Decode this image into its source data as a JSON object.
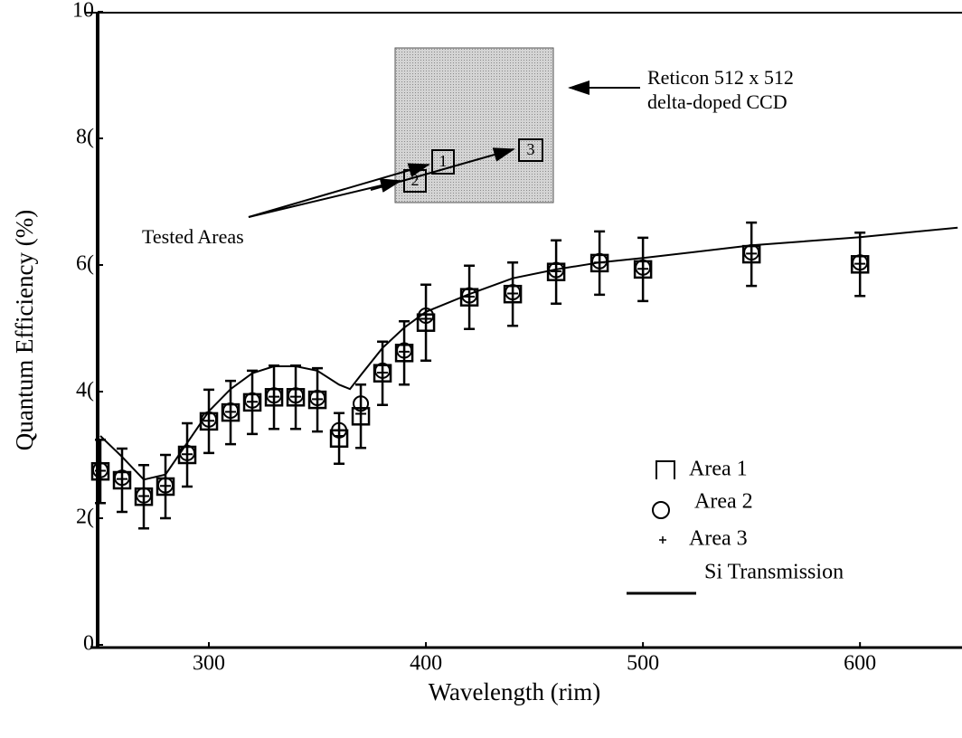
{
  "chart_data": {
    "type": "scatter",
    "xlabel": "Wavelength (rim)",
    "ylabel": "Quantum Efficiency (%)",
    "xlim": [
      249,
      647
    ],
    "ylim": [
      0,
      100
    ],
    "xticks": [
      300,
      400,
      500,
      600
    ],
    "yticks": [
      {
        "value": 100,
        "label": "10"
      },
      {
        "value": 80,
        "label": "8("
      },
      {
        "value": 60,
        "label": "6("
      },
      {
        "value": 40,
        "label": "4("
      },
      {
        "value": 20,
        "label": "2("
      },
      {
        "value": 0,
        "label": "0"
      }
    ],
    "annotations": [
      "Reticon 512 x 512",
      "delta-doped CCD",
      "Tested Areas"
    ],
    "inset_labels": [
      "1",
      "2",
      "3"
    ],
    "series": [
      {
        "name": "Area 1",
        "marker": "square",
        "color": "#000",
        "x": [
          250,
          260,
          270,
          280,
          290,
          300,
          310,
          320,
          330,
          340,
          350,
          360,
          370,
          380,
          390,
          400,
          420,
          440,
          460,
          480,
          500,
          550,
          600
        ],
        "values": [
          27.4,
          26,
          23.4,
          25,
          30,
          35.3,
          36.7,
          38.3,
          39.1,
          39.1,
          38.7,
          32.6,
          36.1,
          42.9,
          46.1,
          50.9,
          54.9,
          55.4,
          58.9,
          60.3,
          59.3,
          61.7,
          60.1
        ],
        "errors": [
          5,
          5,
          5,
          5,
          5,
          5,
          5,
          5,
          5,
          5,
          5,
          4,
          5,
          5,
          5,
          6,
          5,
          5,
          5,
          5,
          5,
          5,
          5
        ]
      },
      {
        "name": "Area 2",
        "marker": "circle",
        "color": "#000",
        "x": [
          250,
          260,
          270,
          280,
          290,
          300,
          310,
          320,
          330,
          340,
          350,
          360,
          370,
          380,
          390,
          400,
          420,
          440,
          460,
          480,
          500,
          550,
          600
        ],
        "values": [
          27.6,
          26.4,
          23.6,
          25.2,
          30.3,
          35.6,
          37,
          38.6,
          39.4,
          39.4,
          39,
          33.9,
          38.1,
          43.3,
          46.5,
          52,
          55.2,
          55.7,
          59.2,
          60.6,
          59.6,
          62,
          60.4
        ]
      },
      {
        "name": "Area 3",
        "marker": "plus",
        "color": "#000",
        "x": [
          250,
          260,
          270,
          280,
          290,
          300,
          310,
          320,
          330,
          340,
          350,
          360,
          370,
          380,
          390,
          400,
          420,
          440,
          460,
          480,
          500,
          550,
          600
        ],
        "values": [
          27.5,
          26.2,
          23.5,
          25.1,
          30.1,
          35.4,
          36.8,
          38.4,
          39.2,
          39.2,
          38.8,
          33,
          36.5,
          43,
          46.3,
          51.5,
          55,
          55.5,
          59,
          60.4,
          59.4,
          61.8,
          60.2
        ]
      },
      {
        "name": "Si Transmission",
        "marker": "line",
        "color": "#000",
        "x": [
          250,
          260,
          270,
          280,
          290,
          300,
          310,
          320,
          330,
          340,
          350,
          360,
          365,
          370,
          380,
          390,
          400,
          420,
          440,
          460,
          480,
          500,
          550,
          600,
          645
        ],
        "values": [
          33,
          29.7,
          26.1,
          26.9,
          31.9,
          36.9,
          40.4,
          42.9,
          44,
          44,
          43.3,
          41.1,
          40.4,
          42.6,
          46.9,
          50.1,
          52.6,
          55.4,
          57.9,
          59.3,
          60.4,
          61.1,
          63.1,
          64.4,
          65.9
        ]
      }
    ]
  }
}
